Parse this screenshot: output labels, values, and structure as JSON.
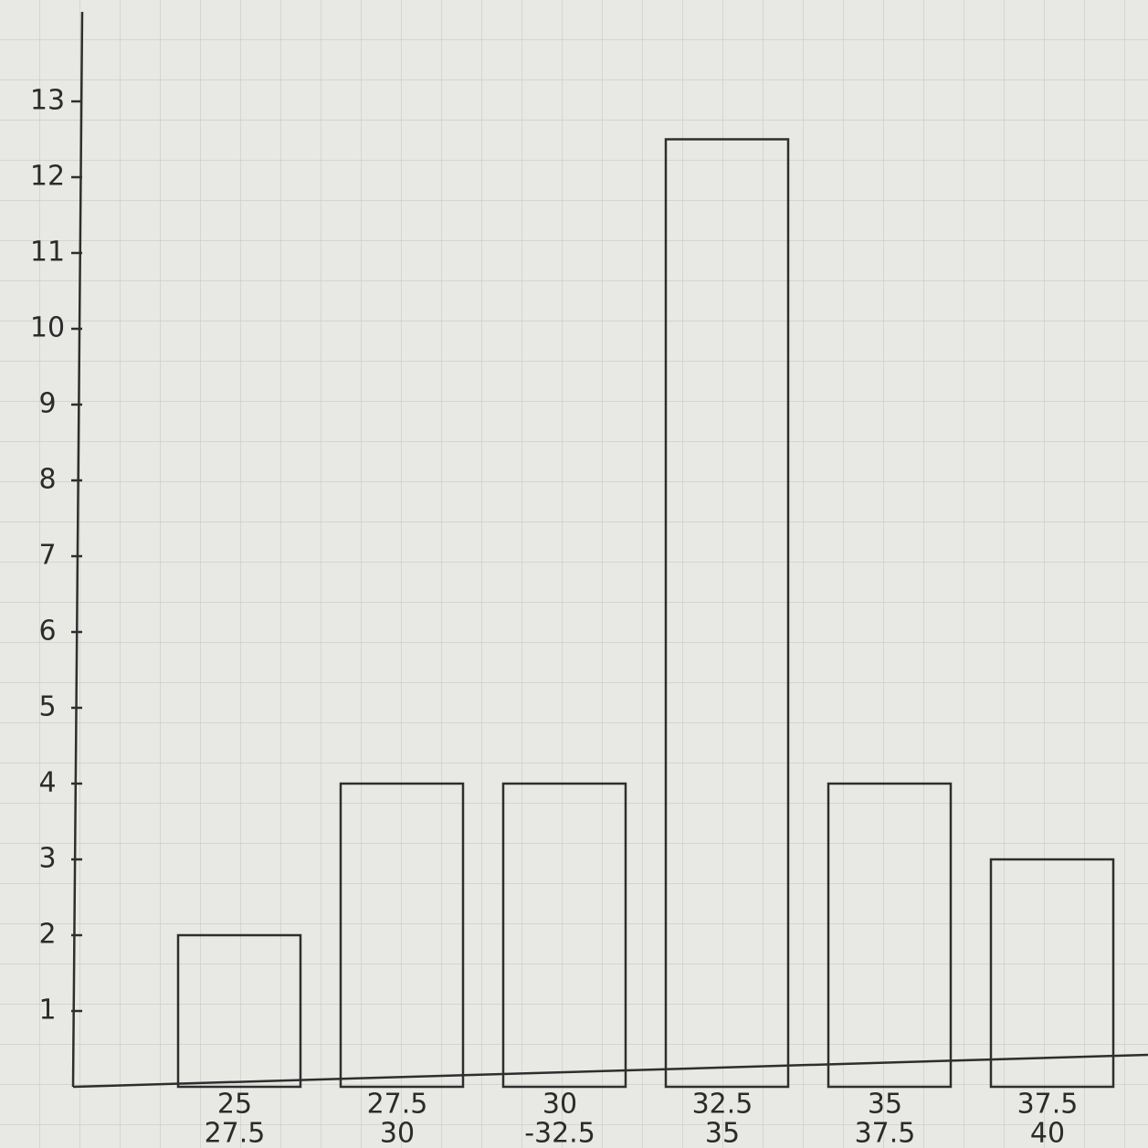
{
  "chart_data": {
    "type": "bar",
    "categories": [
      [
        "25",
        "27.5"
      ],
      [
        "27.5",
        "30"
      ],
      [
        "30",
        "-32.5"
      ],
      [
        "32.5",
        "35"
      ],
      [
        "35",
        "37.5"
      ],
      [
        "37.5",
        "40"
      ]
    ],
    "values": [
      2,
      4,
      4,
      12.5,
      4,
      3
    ],
    "color": "#2e2e2e",
    "ylim": [
      0,
      14
    ],
    "yticks": [
      1,
      2,
      3,
      4,
      5,
      6,
      7,
      8,
      9,
      10,
      11,
      12,
      13
    ]
  }
}
